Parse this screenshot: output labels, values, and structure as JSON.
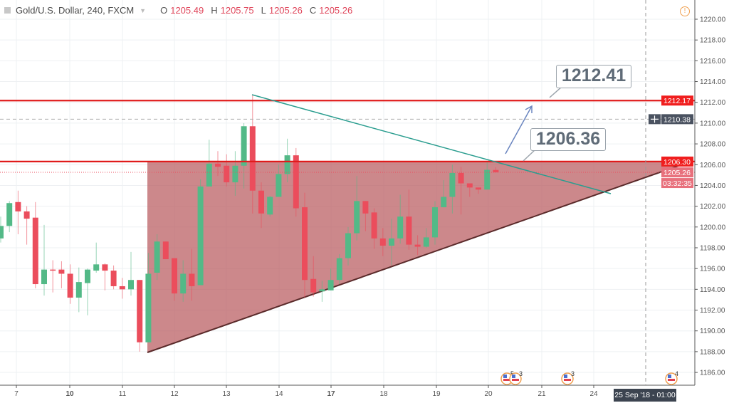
{
  "header": {
    "symbol": "Gold/U.S. Dollar, 240, FXCM",
    "open_label": "O",
    "open": "1205.49",
    "high_label": "H",
    "high": "1205.75",
    "low_label": "L",
    "low": "1205.26",
    "close_label": "C",
    "close": "1205.26",
    "info_icon": "exclamation-circle-icon"
  },
  "callouts": [
    {
      "text": "1212.41"
    },
    {
      "text": "1206.36"
    }
  ],
  "crosshair_time_label": "25 Sep '18 - 01:00",
  "colors": {
    "up": "#53b987",
    "down": "#eb4d5c",
    "level_line": "#e01b1b",
    "trend_line": "#2a9d8f",
    "triangle_fill": "#b85a5e",
    "arrow": "#6b86c0",
    "price_label_bg": "#f01e1e",
    "current_price_bg": "#4a5260"
  },
  "chart_data": {
    "type": "candlestick",
    "title": "Gold/U.S. Dollar, 240, FXCM",
    "ylim": [
      1184.5,
      1222
    ],
    "y_ticks": [
      "1186.00",
      "1188.00",
      "1190.00",
      "1192.00",
      "1194.00",
      "1196.00",
      "1198.00",
      "1200.00",
      "1202.00",
      "1204.00",
      "1206.00",
      "1208.00",
      "1210.00",
      "1212.00",
      "1214.00",
      "1216.00",
      "1218.00",
      "1220.00"
    ],
    "x_ticks": [
      "7",
      "10",
      "11",
      "12",
      "13",
      "14",
      "17",
      "18",
      "19",
      "20",
      "21",
      "24"
    ],
    "bold_x_ticks": [
      "10",
      "17"
    ],
    "candles": [
      [
        1198.9,
        1201.0,
        1198.5,
        1200.1
      ],
      [
        1200.1,
        1202.5,
        1199.5,
        1202.3
      ],
      [
        1202.4,
        1203.5,
        1199.3,
        1201.5
      ],
      [
        1201.5,
        1202.0,
        1198.3,
        1200.8
      ],
      [
        1200.9,
        1202.4,
        1194.1,
        1194.5
      ],
      [
        1194.5,
        1200.2,
        1193.4,
        1195.9
      ],
      [
        1195.9,
        1196.8,
        1193.7,
        1195.8
      ],
      [
        1195.9,
        1196.7,
        1194.1,
        1195.5
      ],
      [
        1195.5,
        1196.4,
        1192.6,
        1193.2
      ],
      [
        1193.2,
        1196.1,
        1191.8,
        1194.7
      ],
      [
        1194.6,
        1196.0,
        1191.5,
        1195.9
      ],
      [
        1195.8,
        1198.5,
        1195.6,
        1196.4
      ],
      [
        1196.4,
        1196.5,
        1193.9,
        1195.8
      ],
      [
        1195.8,
        1196.3,
        1194.0,
        1194.3
      ],
      [
        1194.3,
        1195.1,
        1193.1,
        1194.0
      ],
      [
        1194.0,
        1197.6,
        1193.4,
        1194.9
      ],
      [
        1194.9,
        1194.9,
        1188.0,
        1188.9
      ],
      [
        1188.9,
        1197.5,
        1188.9,
        1195.5
      ],
      [
        1195.6,
        1199.3,
        1194.9,
        1198.6
      ],
      [
        1198.6,
        1198.6,
        1196.9,
        1196.9
      ],
      [
        1197.0,
        1197.0,
        1192.9,
        1193.6
      ],
      [
        1193.6,
        1196.8,
        1192.8,
        1195.5
      ],
      [
        1195.5,
        1197.9,
        1192.9,
        1194.3
      ],
      [
        1194.4,
        1204.6,
        1194.4,
        1203.9
      ],
      [
        1203.9,
        1208.4,
        1203.9,
        1206.1
      ],
      [
        1206.1,
        1207.3,
        1204.9,
        1205.8
      ],
      [
        1205.9,
        1207.0,
        1203.9,
        1204.3
      ],
      [
        1204.3,
        1207.3,
        1203.0,
        1205.9
      ],
      [
        1205.9,
        1210.0,
        1203.7,
        1209.7
      ],
      [
        1209.7,
        1212.7,
        1201.3,
        1203.5
      ],
      [
        1203.5,
        1204.3,
        1199.9,
        1201.3
      ],
      [
        1201.2,
        1203.0,
        1201.0,
        1202.9
      ],
      [
        1202.9,
        1206.0,
        1202.9,
        1205.1
      ],
      [
        1205.1,
        1208.5,
        1204.3,
        1206.9
      ],
      [
        1206.9,
        1207.6,
        1201.0,
        1201.8
      ],
      [
        1201.9,
        1203.3,
        1193.2,
        1194.9
      ],
      [
        1195.0,
        1197.2,
        1193.3,
        1193.7
      ],
      [
        1193.8,
        1194.8,
        1192.8,
        1194.0
      ],
      [
        1193.9,
        1196.0,
        1193.9,
        1194.9
      ],
      [
        1194.9,
        1197.4,
        1194.5,
        1197.0
      ],
      [
        1197.0,
        1200.0,
        1196.3,
        1199.4
      ],
      [
        1199.4,
        1204.9,
        1198.7,
        1202.5
      ],
      [
        1202.5,
        1202.5,
        1199.6,
        1201.3
      ],
      [
        1201.4,
        1201.8,
        1197.9,
        1198.9
      ],
      [
        1198.9,
        1199.9,
        1197.2,
        1198.2
      ],
      [
        1198.2,
        1200.8,
        1196.3,
        1198.9
      ],
      [
        1198.9,
        1203.1,
        1198.4,
        1201.0
      ],
      [
        1201.0,
        1203.6,
        1197.8,
        1198.3
      ],
      [
        1198.3,
        1199.2,
        1197.3,
        1198.1
      ],
      [
        1198.1,
        1199.9,
        1198.0,
        1199.0
      ],
      [
        1199.0,
        1202.5,
        1198.3,
        1201.9
      ],
      [
        1201.9,
        1204.5,
        1201.9,
        1202.9
      ],
      [
        1202.9,
        1206.0,
        1201.3,
        1205.2
      ],
      [
        1205.2,
        1205.8,
        1201.2,
        1204.2
      ],
      [
        1204.2,
        1204.2,
        1202.9,
        1203.8
      ],
      [
        1203.8,
        1203.8,
        1203.2,
        1203.6
      ],
      [
        1203.6,
        1206.3,
        1203.6,
        1205.5
      ],
      [
        1205.49,
        1205.75,
        1205.26,
        1205.26
      ]
    ],
    "horizontal_levels": [
      1212.17,
      1206.3
    ],
    "current_price_line": 1205.26,
    "crosshair_price": 1210.38,
    "axis_labels": {
      "resistance_upper": "1212.17",
      "crosshair": "1210.38",
      "resistance_lower": "1206.30",
      "last_price": "1205.26",
      "countdown": "03:32:35"
    },
    "annotations": [
      "symmetrical triangle (shaded)",
      "descending trend line",
      "upward arrow"
    ],
    "events": [
      {
        "badge": "5"
      },
      {
        "badge": "3"
      },
      {
        "badge": "3"
      },
      {
        "badge": "4"
      }
    ],
    "grid": true
  }
}
